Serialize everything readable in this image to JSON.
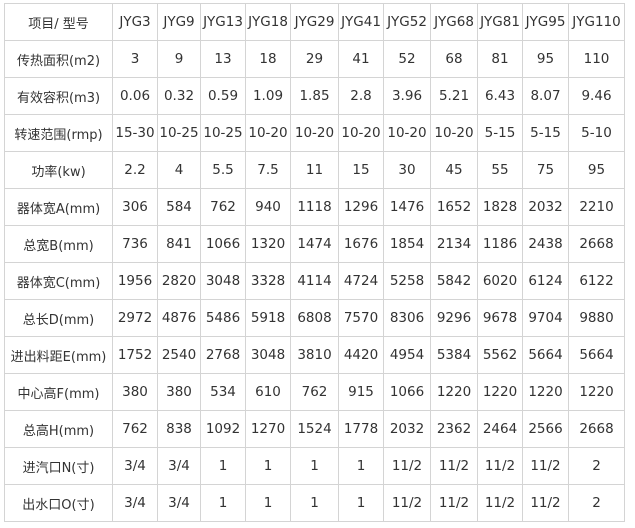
{
  "table": {
    "header": [
      "项目/ 型号",
      "JYG3",
      "JYG9",
      "JYG13",
      "JYG18",
      "JYG29",
      "JYG41",
      "JYG52",
      "JYG68",
      "JYG81",
      "JYG95",
      "JYG110"
    ],
    "rows": [
      [
        "传热面积(m2)",
        "3",
        "9",
        "13",
        "18",
        "29",
        "41",
        "52",
        "68",
        "81",
        "95",
        "110"
      ],
      [
        "有效容积(m3)",
        "0.06",
        "0.32",
        "0.59",
        "1.09",
        "1.85",
        "2.8",
        "3.96",
        "5.21",
        "6.43",
        "8.07",
        "9.46"
      ],
      [
        "转速范围(rmp)",
        "15-30",
        "10-25",
        "10-25",
        "10-20",
        "10-20",
        "10-20",
        "10-20",
        "10-20",
        "5-15",
        "5-15",
        "5-10"
      ],
      [
        "功率(kw)",
        "2.2",
        "4",
        "5.5",
        "7.5",
        "11",
        "15",
        "30",
        "45",
        "55",
        "75",
        "95"
      ],
      [
        "器体宽A(mm)",
        "306",
        "584",
        "762",
        "940",
        "1118",
        "1296",
        "1476",
        "1652",
        "1828",
        "2032",
        "2210"
      ],
      [
        "总宽B(mm)",
        "736",
        "841",
        "1066",
        "1320",
        "1474",
        "1676",
        "1854",
        "2134",
        "1186",
        "2438",
        "2668"
      ],
      [
        "器体宽C(mm)",
        "1956",
        "2820",
        "3048",
        "3328",
        "4114",
        "4724",
        "5258",
        "5842",
        "6020",
        "6124",
        "6122"
      ],
      [
        "总长D(mm)",
        "2972",
        "4876",
        "5486",
        "5918",
        "6808",
        "7570",
        "8306",
        "9296",
        "9678",
        "9704",
        "9880"
      ],
      [
        "进出料距E(mm)",
        "1752",
        "2540",
        "2768",
        "3048",
        "3810",
        "4420",
        "4954",
        "5384",
        "5562",
        "5664",
        "5664"
      ],
      [
        "中心高F(mm)",
        "380",
        "380",
        "534",
        "610",
        "762",
        "915",
        "1066",
        "1220",
        "1220",
        "1220",
        "1220"
      ],
      [
        "总高H(mm)",
        "762",
        "838",
        "1092",
        "1270",
        "1524",
        "1778",
        "2032",
        "2362",
        "2464",
        "2566",
        "2668"
      ],
      [
        "进汽口N(寸)",
        "3/4",
        "3/4",
        "1",
        "1",
        "1",
        "1",
        "11/2",
        "11/2",
        "11/2",
        "11/2",
        "2"
      ],
      [
        "出水口O(寸)",
        "3/4",
        "3/4",
        "1",
        "1",
        "1",
        "1",
        "11/2",
        "11/2",
        "11/2",
        "11/2",
        "2"
      ]
    ]
  }
}
